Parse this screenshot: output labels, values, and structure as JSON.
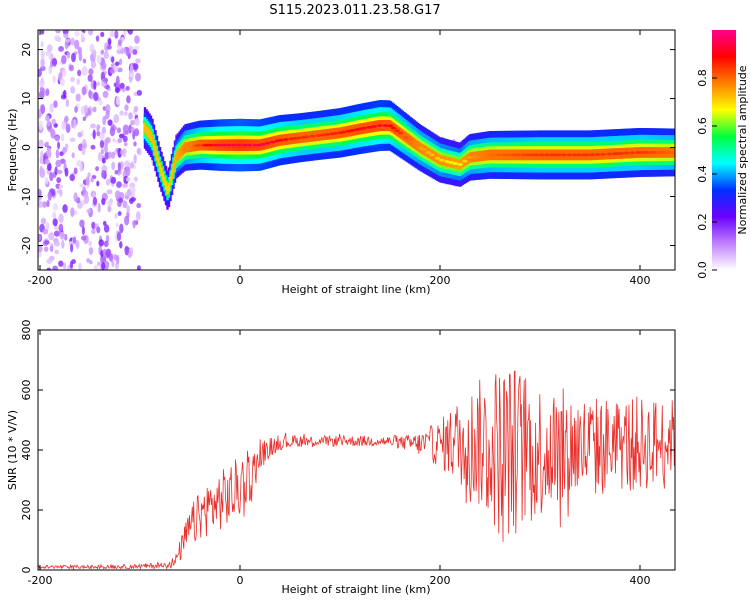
{
  "title": "S115.2023.011.23.58.G17",
  "colors": {
    "snr_line": "#e8302c",
    "ridge_core": "#d83a3a",
    "background": "#ffffff",
    "axes": "#000000"
  },
  "chart_data": [
    {
      "type": "heatmap",
      "name": "spectrogram",
      "xlabel": "Height of straight line (km)",
      "ylabel": "Frequency (Hz)",
      "xlim": [
        -202,
        435
      ],
      "ylim": [
        -25,
        24
      ],
      "xticks": [
        -200,
        0,
        200,
        400
      ],
      "xtick_labels": [
        "-200",
        "0",
        "200",
        "400"
      ],
      "yticks": [
        -20,
        -10,
        0,
        10,
        20
      ],
      "ytick_labels": [
        "-20",
        "-10",
        "0",
        "10",
        "20"
      ],
      "colorbar": {
        "label": "Normalized spectral amplitude",
        "range": [
          0,
          1
        ],
        "ticks": [
          0.0,
          0.2,
          0.4,
          0.6,
          0.8
        ],
        "tick_labels": [
          "0.0",
          "0.2",
          "0.4",
          "0.6",
          "0.8"
        ],
        "colormap": [
          "#ffffff",
          "#c080ff",
          "#6a00ff",
          "#0030ff",
          "#00ffff",
          "#00ff40",
          "#ffff00",
          "#ff8000",
          "#ff0000",
          "#ff0090"
        ]
      },
      "noise_region_x": [
        -202,
        -100
      ],
      "ridge": {
        "x": [
          -95,
          -88,
          -80,
          -72,
          -64,
          -55,
          -40,
          -20,
          0,
          20,
          40,
          60,
          80,
          100,
          120,
          140,
          150,
          160,
          180,
          200,
          220,
          230,
          250,
          300,
          350,
          400,
          435
        ],
        "frequency": [
          4,
          2,
          -4,
          -9,
          -2,
          0,
          0.5,
          0.5,
          0.5,
          0.5,
          1.5,
          2,
          2.5,
          3,
          3.8,
          4.5,
          4.5,
          3,
          0,
          -2.5,
          -3.5,
          -2,
          -1.5,
          -1.5,
          -1.5,
          -1,
          -1
        ],
        "amplitude": [
          0.5,
          0.5,
          0.45,
          0.4,
          0.55,
          0.7,
          0.8,
          0.9,
          0.95,
          0.9,
          0.85,
          0.8,
          0.8,
          0.82,
          0.85,
          0.88,
          0.85,
          0.8,
          0.7,
          0.65,
          0.6,
          0.7,
          0.75,
          0.8,
          0.8,
          0.8,
          0.75
        ]
      }
    },
    {
      "type": "line",
      "name": "snr",
      "xlabel": "Height of straight line (km)",
      "ylabel": "SNR (10 * V/V)",
      "xlim": [
        -202,
        435
      ],
      "ylim": [
        0,
        800
      ],
      "xticks": [
        -200,
        0,
        200,
        400
      ],
      "xtick_labels": [
        "-200",
        "0",
        "200",
        "400"
      ],
      "yticks": [
        0,
        200,
        400,
        600,
        800
      ],
      "ytick_labels": [
        "0",
        "200",
        "400",
        "600",
        "800"
      ],
      "envelope": {
        "x": [
          -202,
          -150,
          -100,
          -80,
          -65,
          -50,
          -35,
          -20,
          -5,
          10,
          25,
          40,
          60,
          80,
          100,
          120,
          140,
          160,
          180,
          200,
          220,
          240,
          260,
          280,
          300,
          320,
          340,
          360,
          380,
          400,
          420,
          435
        ],
        "mean": [
          10,
          10,
          12,
          15,
          25,
          140,
          200,
          230,
          260,
          310,
          400,
          425,
          430,
          430,
          430,
          430,
          430,
          425,
          420,
          420,
          430,
          420,
          400,
          400,
          400,
          410,
          410,
          410,
          420,
          420,
          425,
          450
        ],
        "spread": [
          6,
          6,
          8,
          10,
          20,
          70,
          90,
          100,
          110,
          80,
          40,
          25,
          20,
          18,
          18,
          18,
          18,
          20,
          40,
          80,
          150,
          220,
          300,
          280,
          230,
          200,
          180,
          170,
          160,
          160,
          150,
          120
        ]
      }
    }
  ]
}
